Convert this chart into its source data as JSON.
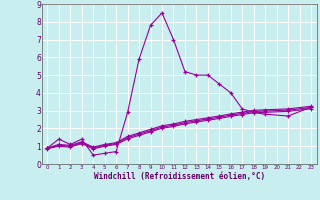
{
  "xlabel": "Windchill (Refroidissement éolien,°C)",
  "background_color": "#c8eef0",
  "grid_color": "#ffffff",
  "line_color": "#990099",
  "tick_color": "#660066",
  "xlim": [
    -0.5,
    23.5
  ],
  "ylim": [
    0,
    9
  ],
  "xticks": [
    0,
    1,
    2,
    3,
    4,
    5,
    6,
    7,
    8,
    9,
    10,
    11,
    12,
    13,
    14,
    15,
    16,
    17,
    18,
    19,
    20,
    21,
    22,
    23
  ],
  "yticks": [
    0,
    1,
    2,
    3,
    4,
    5,
    6,
    7,
    8,
    9
  ],
  "x_values": [
    0,
    1,
    2,
    3,
    4,
    5,
    6,
    7,
    8,
    9,
    10,
    11,
    12,
    13,
    14,
    15,
    16,
    17,
    18,
    19,
    21,
    23
  ],
  "series": [
    [
      0.9,
      1.4,
      1.1,
      1.4,
      0.5,
      0.6,
      0.7,
      2.9,
      5.9,
      7.8,
      8.5,
      7.0,
      5.2,
      5.0,
      5.0,
      4.5,
      4.0,
      3.1,
      2.9,
      2.8,
      2.7,
      3.2
    ],
    [
      0.9,
      1.1,
      1.05,
      1.25,
      0.95,
      1.1,
      1.2,
      1.55,
      1.75,
      1.95,
      2.15,
      2.25,
      2.4,
      2.5,
      2.6,
      2.7,
      2.82,
      2.92,
      3.02,
      3.05,
      3.1,
      3.25
    ],
    [
      0.88,
      1.05,
      1.0,
      1.2,
      0.9,
      1.05,
      1.15,
      1.48,
      1.68,
      1.88,
      2.08,
      2.18,
      2.33,
      2.43,
      2.53,
      2.63,
      2.75,
      2.85,
      2.95,
      2.98,
      3.03,
      3.18
    ],
    [
      0.86,
      1.0,
      0.95,
      1.15,
      0.85,
      1.0,
      1.1,
      1.41,
      1.61,
      1.81,
      2.01,
      2.11,
      2.26,
      2.36,
      2.46,
      2.56,
      2.68,
      2.78,
      2.88,
      2.91,
      2.96,
      3.11
    ]
  ]
}
